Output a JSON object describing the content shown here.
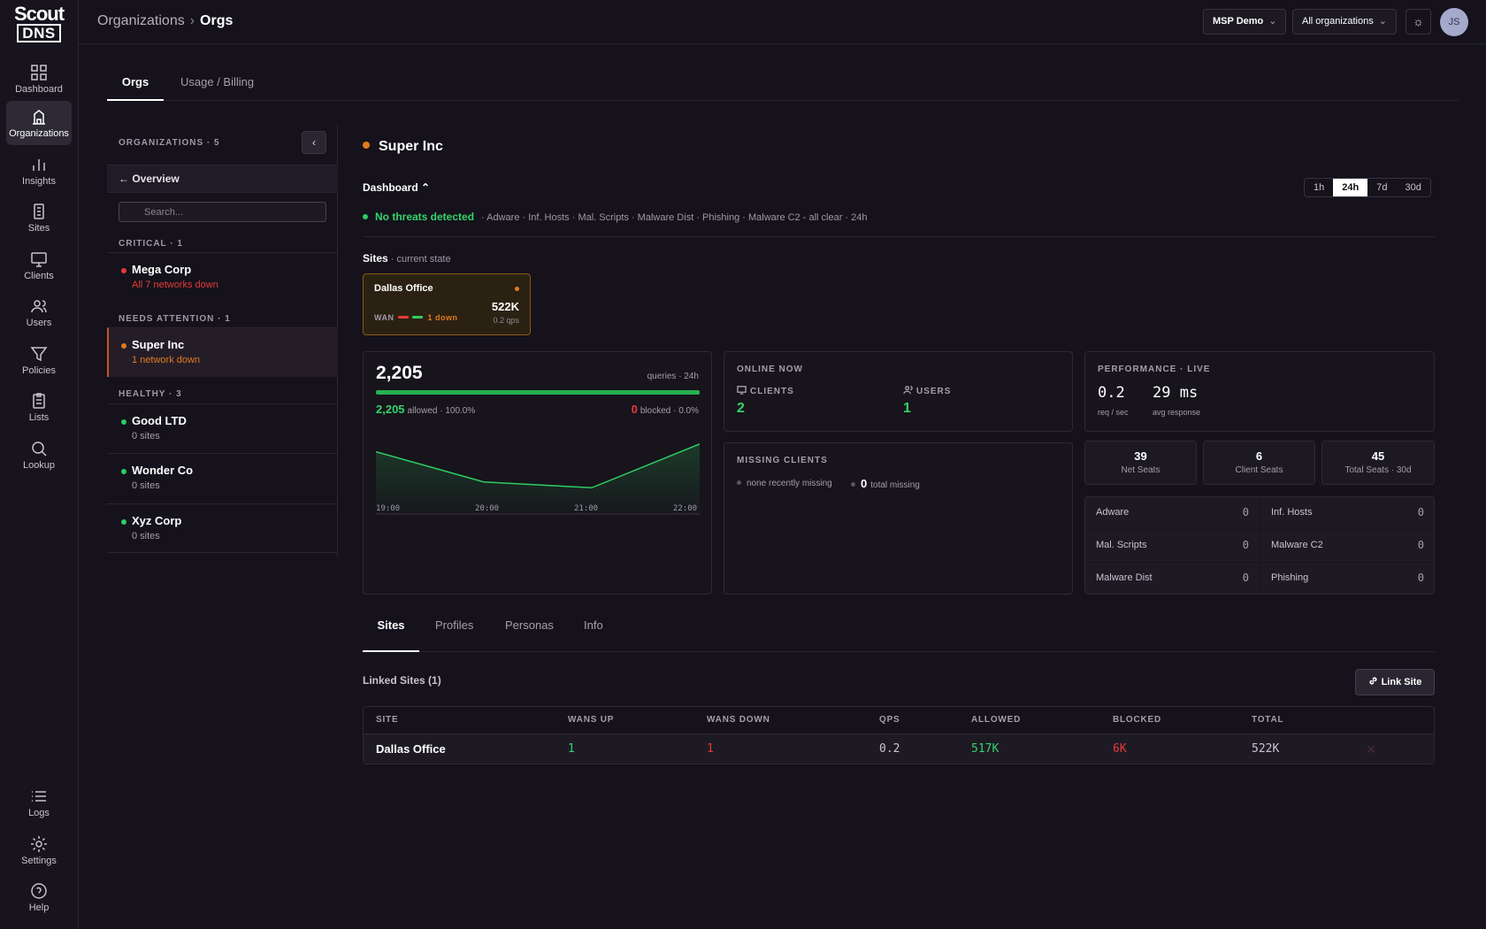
{
  "app": {
    "logo_line1": "Scout",
    "logo_line2": "DNS"
  },
  "nav": [
    {
      "label": "Dashboard",
      "icon": "grid-icon"
    },
    {
      "label": "Organizations",
      "icon": "building-icon"
    },
    {
      "label": "Insights",
      "icon": "bar-chart-icon"
    },
    {
      "label": "Sites",
      "icon": "server-icon"
    },
    {
      "label": "Clients",
      "icon": "monitor-icon"
    },
    {
      "label": "Users",
      "icon": "users-icon"
    },
    {
      "label": "Policies",
      "icon": "filter-icon"
    },
    {
      "label": "Lists",
      "icon": "clipboard-icon"
    },
    {
      "label": "Lookup",
      "icon": "search-icon"
    }
  ],
  "nav_bottom": [
    {
      "label": "Logs",
      "icon": "list-icon"
    },
    {
      "label": "Settings",
      "icon": "gear-icon"
    },
    {
      "label": "Help",
      "icon": "help-icon"
    }
  ],
  "header": {
    "crumb_root": "Organizations",
    "crumb_sep": "›",
    "crumb_current": "Orgs",
    "tenant": "MSP Demo",
    "scope": "All organizations",
    "avatar": "JS"
  },
  "top_tabs": [
    "Orgs",
    "Usage / Billing"
  ],
  "org_panel": {
    "count_label": "ORGANIZATIONS · 5",
    "overview": "← Overview",
    "search_placeholder": "Search...",
    "groups": {
      "critical": "CRITICAL · 1",
      "attention": "NEEDS ATTENTION · 1",
      "healthy": "HEALTHY · 3"
    },
    "orgs": [
      {
        "name": "Mega Corp",
        "sub": "All 7 networks down"
      },
      {
        "name": "Super Inc",
        "sub": "1 network down"
      },
      {
        "name": "Good LTD",
        "sub": "0 sites"
      },
      {
        "name": "Wonder Co",
        "sub": "0 sites"
      },
      {
        "name": "Xyz Corp",
        "sub": "0 sites"
      }
    ]
  },
  "main": {
    "org_name": "Super Inc",
    "dashboard_label": "Dashboard ⌃",
    "ranges": [
      "1h",
      "24h",
      "7d",
      "30d"
    ],
    "threat_status": "No threats detected",
    "threat_detail": "· Adware · Inf. Hosts · Mal. Scripts · Malware Dist · Phishing · Malware C2 - all clear · 24h",
    "sites_label": "Sites",
    "sites_sub": "· current state",
    "site_card": {
      "name": "Dallas Office",
      "wan": "WAN",
      "down": "1 down",
      "total": "522K",
      "qps": "0.2 qps"
    },
    "queries": {
      "total": "2,205",
      "meta": "queries · 24h",
      "allowed_value": "2,205",
      "allowed_text": "allowed · 100.0%",
      "blocked_value": "0",
      "blocked_text": "blocked · 0.0%",
      "ticks": [
        "19:00",
        "20:00",
        "21:00",
        "22:00"
      ]
    },
    "chart_data": {
      "type": "area",
      "x": [
        "19:00",
        "20:00",
        "21:00",
        "22:00"
      ],
      "series": [
        {
          "values": [
            640,
            330,
            270,
            720
          ]
        }
      ],
      "ylim": [
        0,
        800
      ]
    },
    "online": {
      "title": "ONLINE NOW",
      "clients_label": "CLIENTS",
      "clients_value": "2",
      "users_label": "USERS",
      "users_value": "1"
    },
    "missing": {
      "title": "MISSING CLIENTS",
      "recent": "none recently missing",
      "total_value": "0",
      "total_label": "total missing"
    },
    "performance": {
      "title": "PERFORMANCE · LIVE",
      "req_value": "0.2",
      "req_label": "req / sec",
      "resp_value": "29 ms",
      "resp_label": "avg response"
    },
    "seats": [
      {
        "value": "39",
        "label": "Net Seats"
      },
      {
        "value": "6",
        "label": "Client Seats"
      },
      {
        "value": "45",
        "label": "Total Seats · 30d"
      }
    ],
    "threats": [
      {
        "name": "Adware",
        "value": "0"
      },
      {
        "name": "Inf. Hosts",
        "value": "0"
      },
      {
        "name": "Mal. Scripts",
        "value": "0"
      },
      {
        "name": "Malware C2",
        "value": "0"
      },
      {
        "name": "Malware Dist",
        "value": "0"
      },
      {
        "name": "Phishing",
        "value": "0"
      }
    ]
  },
  "sub_tabs": [
    "Sites",
    "Profiles",
    "Personas",
    "Info"
  ],
  "linked": {
    "title": "Linked Sites (1)",
    "button": "Link Site",
    "columns": [
      "SITE",
      "WANS UP",
      "WANS DOWN",
      "QPS",
      "ALLOWED",
      "BLOCKED",
      "TOTAL"
    ],
    "rows": [
      {
        "site": "Dallas Office",
        "wans_up": "1",
        "wans_down": "1",
        "qps": "0.2",
        "allowed": "517K",
        "blocked": "6K",
        "total": "522K"
      }
    ]
  },
  "colors": {
    "accent_green": "#34d36a",
    "accent_red": "#e53a3a",
    "accent_orange": "#e07b21"
  }
}
